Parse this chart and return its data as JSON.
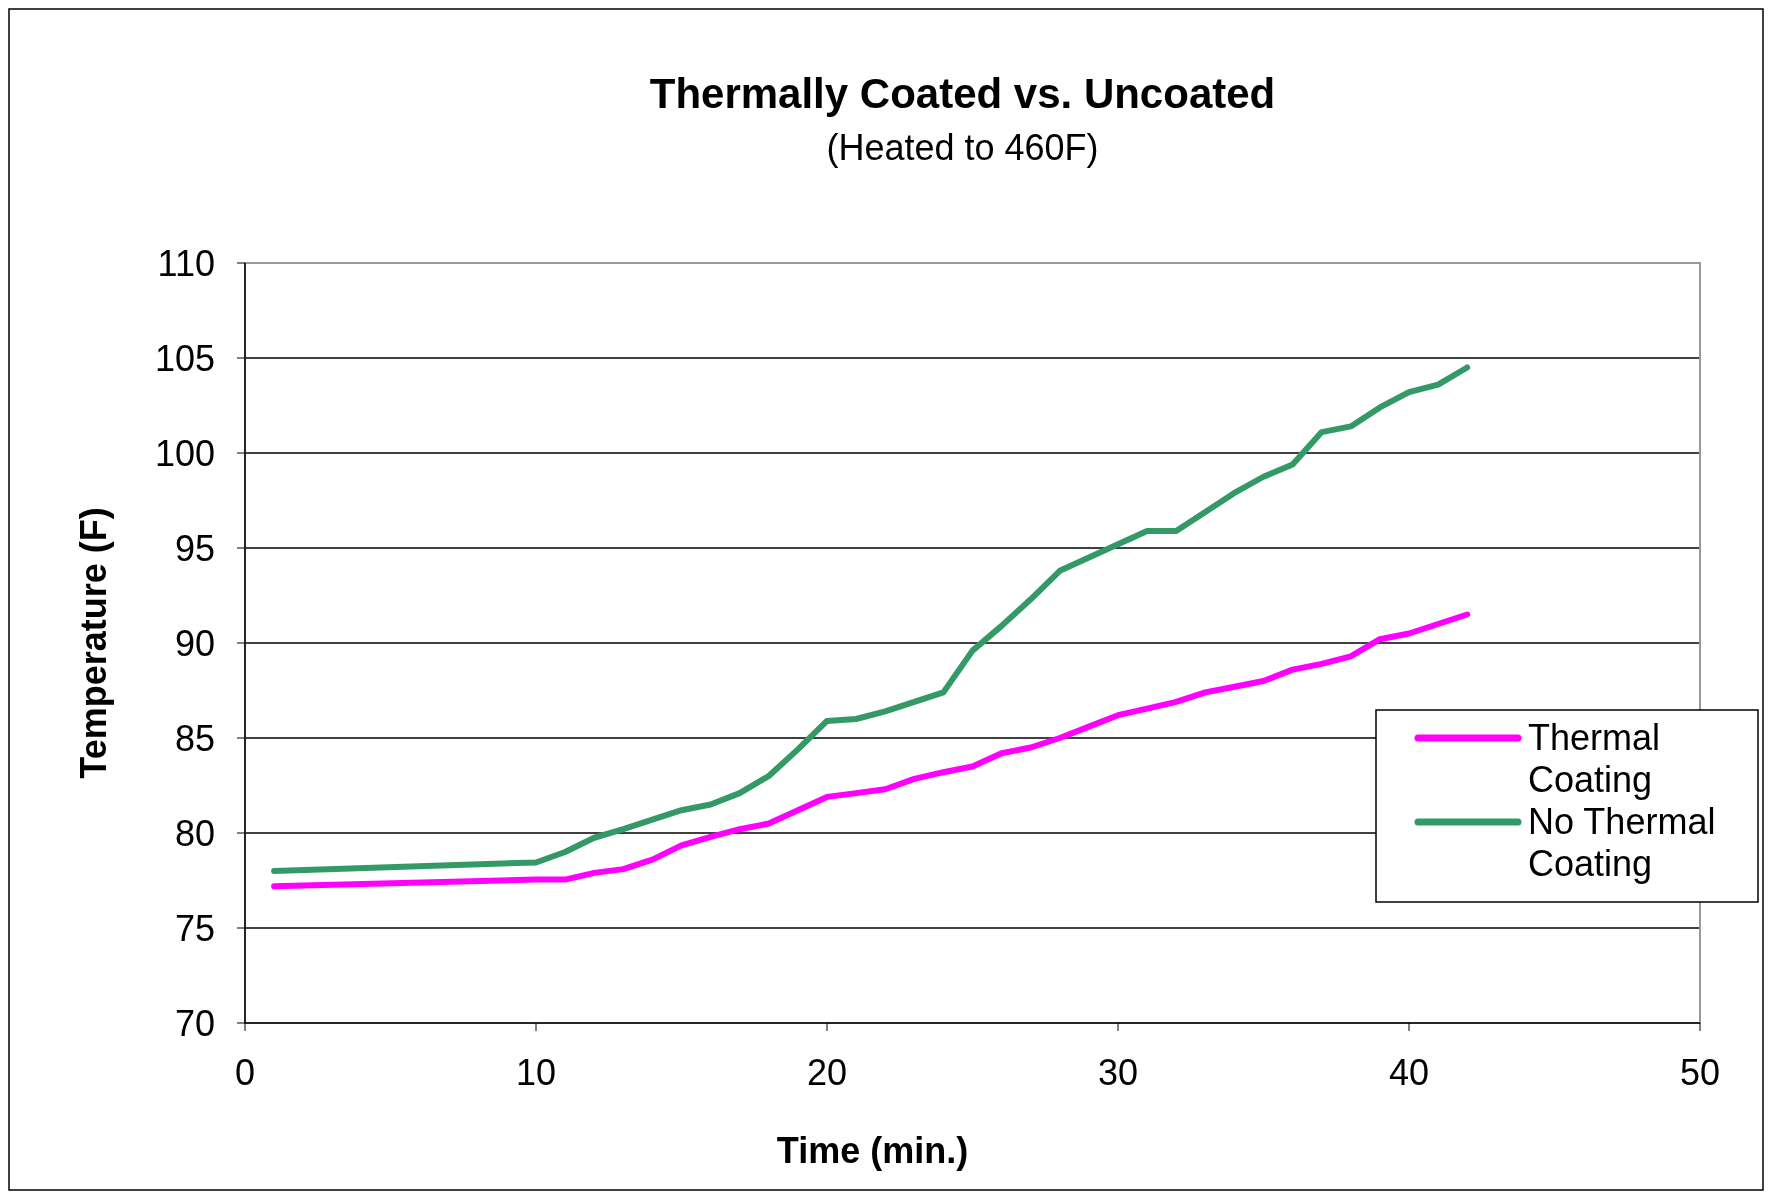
{
  "chart_data": {
    "type": "line",
    "title": "Thermally Coated vs. Uncoated",
    "subtitle": "(Heated to 460F)",
    "xlabel": "Time (min.)",
    "ylabel": "Temperature (F)",
    "x": [
      1,
      10,
      11,
      12,
      13,
      14,
      15,
      16,
      17,
      18,
      19,
      20,
      21,
      22,
      23,
      24,
      25,
      26,
      27,
      28,
      29,
      30,
      31,
      32,
      33,
      34,
      35,
      36,
      37,
      38,
      39,
      40,
      41,
      42
    ],
    "series": [
      {
        "name": "Thermal Coating",
        "color": "#ff00ff",
        "values": [
          77.2,
          77.55,
          77.55,
          77.9,
          78.1,
          78.6,
          79.35,
          79.8,
          80.2,
          80.5,
          81.2,
          81.9,
          82.1,
          82.3,
          82.85,
          83.2,
          83.5,
          84.2,
          84.5,
          85.0,
          85.6,
          86.2,
          86.55,
          86.9,
          87.4,
          87.7,
          88.0,
          88.6,
          88.9,
          89.3,
          90.2,
          90.5,
          91.0,
          91.5
        ]
      },
      {
        "name": "No Thermal Coating",
        "color": "#339966",
        "values": [
          78.0,
          78.45,
          79.0,
          79.75,
          80.2,
          80.7,
          81.2,
          81.5,
          82.1,
          83.0,
          84.4,
          85.9,
          86.0,
          86.4,
          86.9,
          87.4,
          89.6,
          90.9,
          92.3,
          93.8,
          94.5,
          95.2,
          95.9,
          95.9,
          96.9,
          97.9,
          98.75,
          99.4,
          101.1,
          101.4,
          102.4,
          103.2,
          103.6,
          104.5
        ]
      }
    ],
    "xlim": [
      0,
      50
    ],
    "xticks": [
      0,
      10,
      20,
      30,
      40,
      50
    ],
    "ylim": [
      70,
      110
    ],
    "yticks": [
      70,
      75,
      80,
      85,
      90,
      95,
      100,
      105,
      110
    ],
    "grid": "y",
    "legend": "right",
    "marker": "none",
    "line_style": "solid"
  }
}
